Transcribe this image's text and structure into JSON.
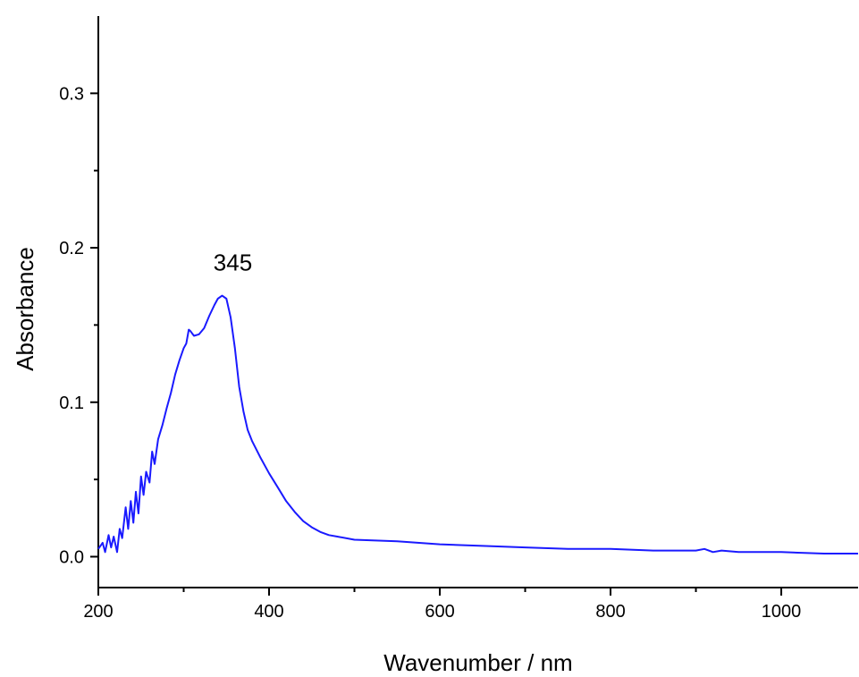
{
  "chart_data": {
    "type": "line",
    "title": "",
    "xlabel": "Wavenumber / nm",
    "ylabel": "Absorbance",
    "xlim": [
      200,
      1090
    ],
    "ylim": [
      -0.02,
      0.35
    ],
    "x_ticks": [
      200,
      400,
      600,
      800,
      1000
    ],
    "x_tick_labels": [
      "200",
      "400",
      "600",
      "800",
      "1000"
    ],
    "y_ticks": [
      0.0,
      0.1,
      0.2,
      0.3
    ],
    "y_tick_labels": [
      "0.0",
      "0.1",
      "0.2",
      "0.3"
    ],
    "grid": false,
    "legend": "none",
    "line_color": "#1a1aff",
    "annotations": [
      {
        "text": "345",
        "x": 345,
        "y": 0.169
      }
    ],
    "series": [
      {
        "x": [
          200,
          205,
          208,
          212,
          215,
          218,
          222,
          225,
          228,
          232,
          235,
          238,
          241,
          244,
          247,
          250,
          253,
          256,
          260,
          263,
          266,
          270,
          275,
          280,
          285,
          290,
          295,
          300,
          303,
          306,
          308,
          312,
          318,
          324,
          330,
          336,
          340,
          345,
          350,
          355,
          360,
          365,
          370,
          375,
          380,
          390,
          400,
          410,
          420,
          430,
          440,
          450,
          460,
          470,
          480,
          500,
          550,
          600,
          650,
          700,
          750,
          800,
          850,
          900,
          910,
          920,
          930,
          950,
          1000,
          1050,
          1090
        ],
        "y": [
          0.005,
          0.009,
          0.003,
          0.014,
          0.006,
          0.013,
          0.003,
          0.018,
          0.012,
          0.032,
          0.018,
          0.036,
          0.022,
          0.042,
          0.028,
          0.052,
          0.04,
          0.055,
          0.048,
          0.068,
          0.06,
          0.076,
          0.085,
          0.096,
          0.106,
          0.118,
          0.127,
          0.135,
          0.138,
          0.147,
          0.146,
          0.143,
          0.144,
          0.148,
          0.156,
          0.163,
          0.167,
          0.169,
          0.167,
          0.155,
          0.135,
          0.11,
          0.094,
          0.082,
          0.075,
          0.064,
          0.054,
          0.045,
          0.036,
          0.029,
          0.023,
          0.019,
          0.016,
          0.014,
          0.013,
          0.011,
          0.01,
          0.008,
          0.007,
          0.006,
          0.005,
          0.005,
          0.004,
          0.004,
          0.005,
          0.003,
          0.004,
          0.003,
          0.003,
          0.002,
          0.002
        ]
      }
    ]
  }
}
